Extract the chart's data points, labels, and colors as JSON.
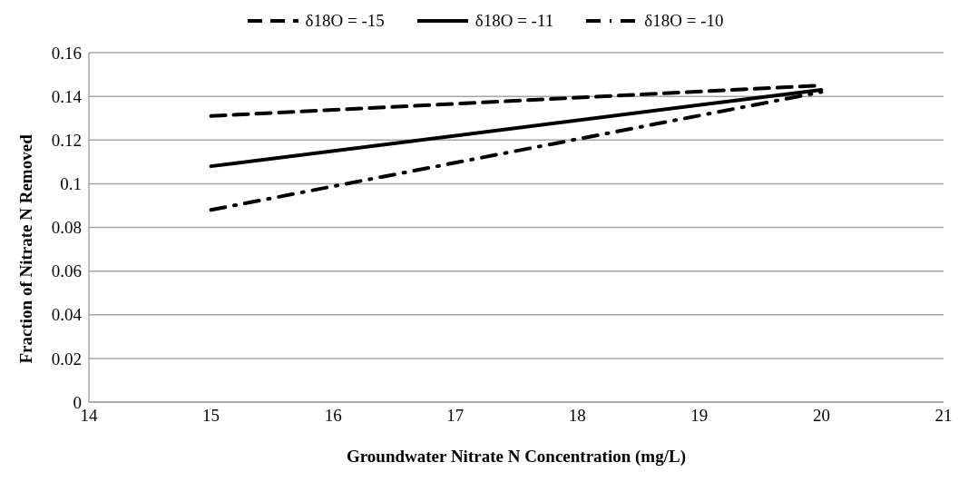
{
  "chart_data": {
    "type": "line",
    "xlabel": "Groundwater Nitrate N Concentration (mg/L)",
    "ylabel": "Fraction of Nitrate N Removed",
    "x": [
      15,
      20
    ],
    "series": [
      {
        "name": "δ18O = -15",
        "color": "#000000",
        "line_style": "dashed",
        "values": [
          0.131,
          0.145
        ]
      },
      {
        "name": "δ18O = -11",
        "color": "#000000",
        "line_style": "solid",
        "values": [
          0.108,
          0.143
        ]
      },
      {
        "name": "δ18O = -10",
        "color": "#000000",
        "line_style": "dashdot",
        "values": [
          0.088,
          0.142
        ]
      }
    ],
    "xlim": [
      14,
      21
    ],
    "xticks": [
      14,
      15,
      16,
      17,
      18,
      19,
      20,
      21
    ],
    "ylim": [
      0,
      0.16
    ],
    "yticks": [
      0,
      0.02,
      0.04,
      0.06,
      0.08,
      0.1,
      0.12,
      0.14,
      0.16
    ],
    "grid": "y",
    "legend": "top",
    "marker": "none"
  }
}
